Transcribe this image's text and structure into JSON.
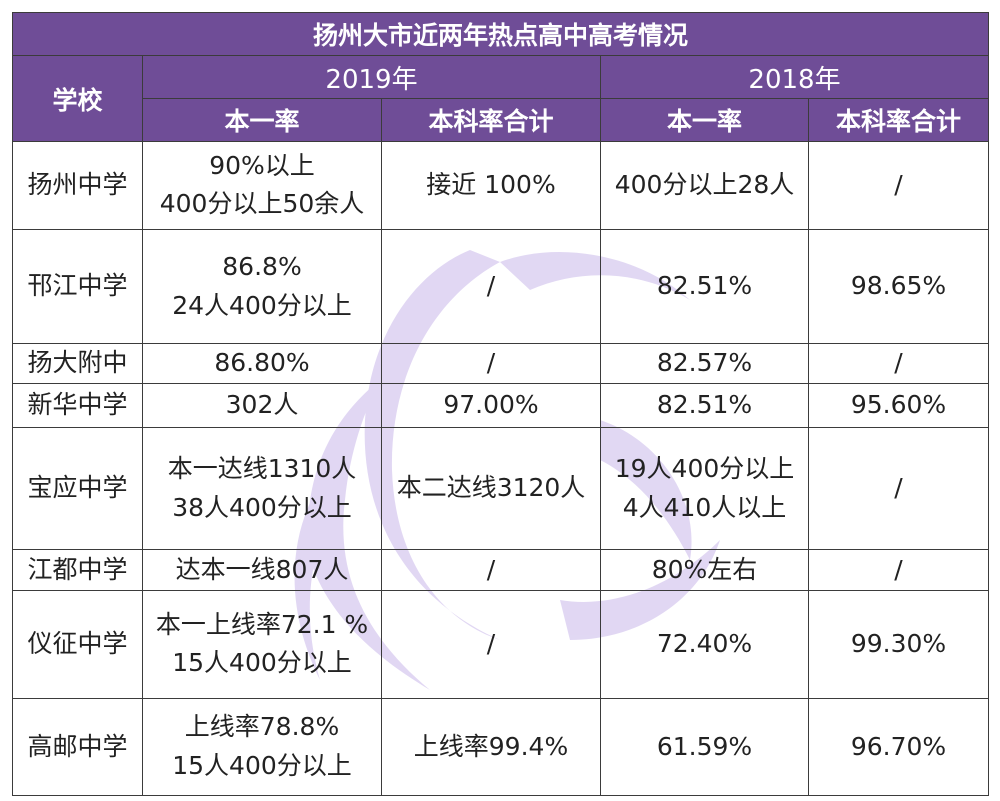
{
  "title": "扬州大市近两年热点高中高考情况",
  "header": {
    "school": "学校",
    "years": [
      "2019年",
      "2018年"
    ],
    "cols": [
      "本一率",
      "本科率合计",
      "本一率",
      "本科率合计"
    ]
  },
  "rows": [
    {
      "school": "扬州中学",
      "c": [
        [
          "90%以上",
          "400分以上50余人"
        ],
        [
          "接近 100%"
        ],
        [
          "400分以上28人"
        ],
        [
          "/"
        ]
      ]
    },
    {
      "school": "邗江中学",
      "c": [
        [
          "86.8%",
          "24人400分以上"
        ],
        [
          "/"
        ],
        [
          "82.51%"
        ],
        [
          "98.65%"
        ]
      ]
    },
    {
      "school": "扬大附中",
      "c": [
        [
          "86.80%"
        ],
        [
          "/"
        ],
        [
          "82.57%"
        ],
        [
          "/"
        ]
      ]
    },
    {
      "school": "新华中学",
      "c": [
        [
          "302人"
        ],
        [
          "97.00%"
        ],
        [
          "82.51%"
        ],
        [
          "95.60%"
        ]
      ]
    },
    {
      "school": "宝应中学",
      "c": [
        [
          "本一达线1310人",
          "38人400分以上"
        ],
        [
          "本二达线3120人"
        ],
        [
          "19人400分以上",
          "4人410人以上"
        ],
        [
          "/"
        ]
      ]
    },
    {
      "school": "江都中学",
      "c": [
        [
          "达本一线807人"
        ],
        [
          "/"
        ],
        [
          "80%左右"
        ],
        [
          "/"
        ]
      ]
    },
    {
      "school": "仪征中学",
      "c": [
        [
          "本一上线率72.1 %",
          "15人400分以上"
        ],
        [
          "/"
        ],
        [
          "72.40%"
        ],
        [
          "99.30%"
        ]
      ]
    },
    {
      "school": "高邮中学",
      "c": [
        [
          "上线率78.8%",
          "15人400分以上"
        ],
        [
          "上线率99.4%"
        ],
        [
          "61.59%"
        ],
        [
          "96.70%"
        ]
      ]
    }
  ],
  "colors": {
    "header_bg": "#6f4d97",
    "border": "#3b3b3b",
    "watermark": "#c9b8ea"
  }
}
